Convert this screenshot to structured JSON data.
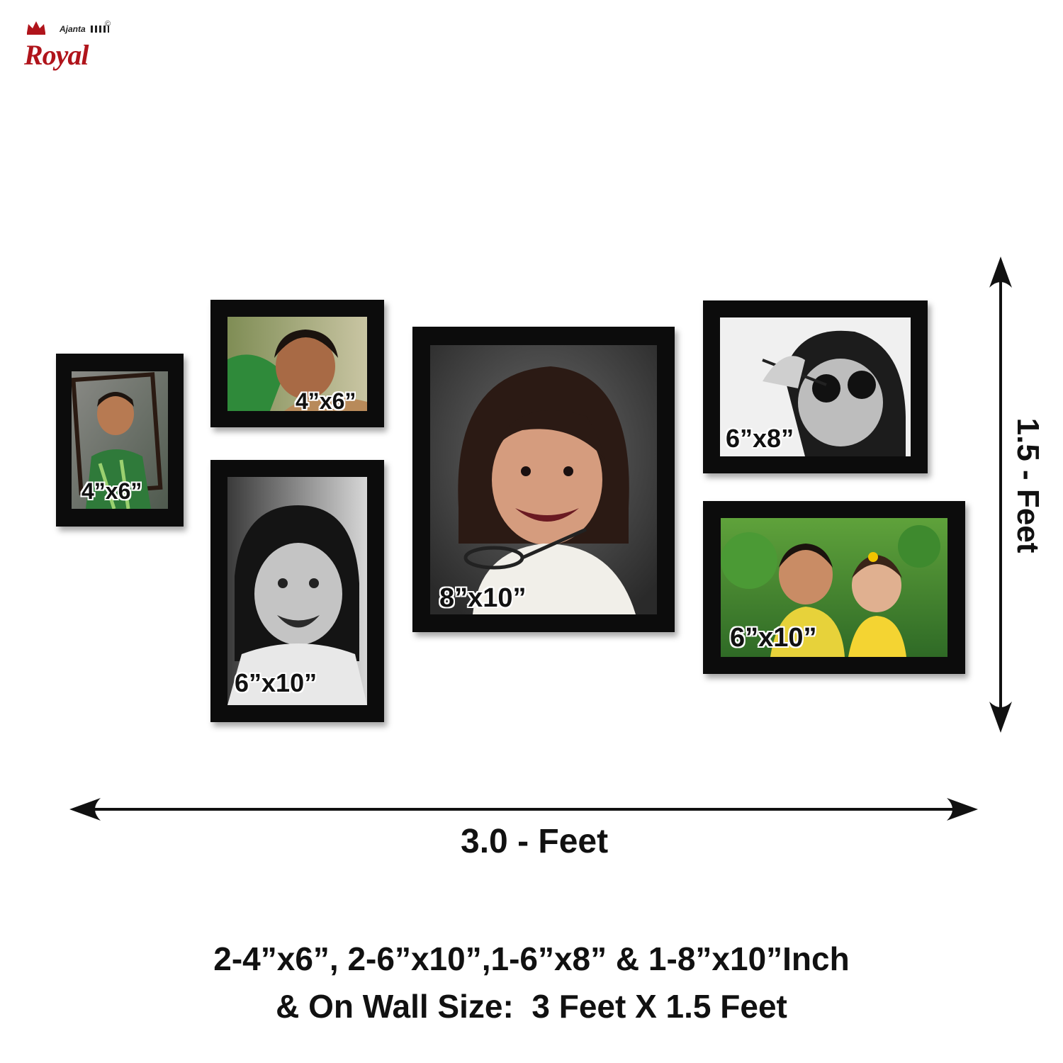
{
  "brand": {
    "name": "Royal",
    "sub": "Ajanta",
    "copyright": "©",
    "color": "#b0141b"
  },
  "frames": [
    {
      "id": "frame-1",
      "label": "4”x6”"
    },
    {
      "id": "frame-2",
      "label": "4”x6”"
    },
    {
      "id": "frame-3",
      "label": "6”x10”"
    },
    {
      "id": "frame-4",
      "label": "8”x10”"
    },
    {
      "id": "frame-5",
      "label": "6”x8”"
    },
    {
      "id": "frame-6",
      "label": "6”x10”"
    }
  ],
  "dimensions": {
    "height_label": "1.5 - Feet",
    "width_label": "3.0 - Feet"
  },
  "caption": {
    "line1": "2-4”x6”, 2-6”x10”,1-6”x8” & 1-8”x10”Inch",
    "line2": "& On Wall Size:  3 Feet X 1.5 Feet"
  }
}
